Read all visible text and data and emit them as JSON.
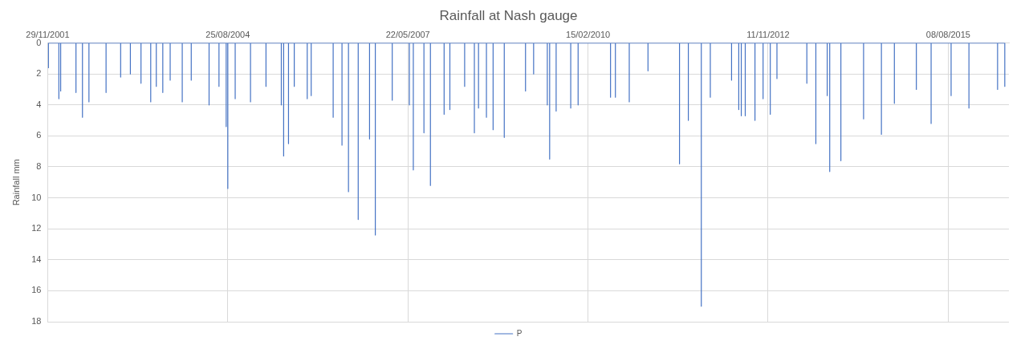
{
  "chart_data": {
    "type": "line",
    "title": "Rainfall at Nash gauge",
    "ylabel": "Rainfall mm",
    "xlim": [
      "2001-11-29",
      "2016-07-10"
    ],
    "xticks": [
      {
        "value": "2001-11-29",
        "label": "29/11/2001"
      },
      {
        "value": "2004-08-25",
        "label": "25/08/2004"
      },
      {
        "value": "2007-05-22",
        "label": "22/05/2007"
      },
      {
        "value": "2010-02-15",
        "label": "15/02/2010"
      },
      {
        "value": "2012-11-11",
        "label": "11/11/2012"
      },
      {
        "value": "2015-08-08",
        "label": "08/08/2015"
      }
    ],
    "ylim": [
      18,
      0
    ],
    "yticks": [
      0,
      2,
      4,
      6,
      8,
      10,
      12,
      14,
      16,
      18
    ],
    "grid": true,
    "legend": "bottom",
    "marker": "none",
    "line_style": "solid",
    "series": [
      {
        "name": "P",
        "color": "#4472c4",
        "x": [
          "2001-12-03",
          "2001-12-03",
          "2001-12-03",
          "2002-01-30",
          "2002-01-30",
          "2002-01-30",
          "2002-02-09",
          "2002-02-09",
          "2002-02-09",
          "2002-05-05",
          "2002-05-05",
          "2002-05-05",
          "2002-06-10",
          "2002-06-10",
          "2002-06-10",
          "2002-07-16",
          "2002-07-16",
          "2002-07-16",
          "2002-10-19",
          "2002-10-19",
          "2002-10-19",
          "2003-01-08",
          "2003-01-08",
          "2003-01-08",
          "2003-03-03",
          "2003-03-03",
          "2003-03-03",
          "2003-05-01",
          "2003-05-01",
          "2003-05-01",
          "2003-06-24",
          "2003-06-24",
          "2003-06-24",
          "2003-07-25",
          "2003-07-25",
          "2003-07-25",
          "2003-08-30",
          "2003-08-30",
          "2003-08-30",
          "2003-10-10",
          "2003-10-10",
          "2003-10-10",
          "2003-12-16",
          "2003-12-16",
          "2003-12-16",
          "2004-02-04",
          "2004-02-04",
          "2004-02-04",
          "2004-05-13",
          "2004-05-13",
          "2004-05-13",
          "2004-07-07",
          "2004-07-07",
          "2004-07-07",
          "2004-08-16",
          "2004-08-16",
          "2004-08-16",
          "2004-08-25",
          "2004-08-25",
          "2004-08-25",
          "2004-10-05",
          "2004-10-05",
          "2004-10-05",
          "2004-12-29",
          "2004-12-29",
          "2004-12-29",
          "2005-03-25",
          "2005-03-25",
          "2005-03-25",
          "2005-06-18",
          "2005-06-18",
          "2005-06-18",
          "2005-07-01",
          "2005-07-01",
          "2005-07-01",
          "2005-07-28",
          "2005-07-28",
          "2005-07-28",
          "2005-08-29",
          "2005-08-29",
          "2005-08-29",
          "2005-11-09",
          "2005-11-09",
          "2005-11-09",
          "2005-12-01",
          "2005-12-01",
          "2005-12-01",
          "2006-04-02",
          "2006-04-02",
          "2006-04-02",
          "2006-05-21",
          "2006-05-21",
          "2006-05-21",
          "2006-06-26",
          "2006-06-26",
          "2006-06-26",
          "2006-08-19",
          "2006-08-19",
          "2006-08-19",
          "2006-10-21",
          "2006-10-21",
          "2006-10-21",
          "2006-11-22",
          "2006-11-22",
          "2006-11-22",
          "2007-02-24",
          "2007-02-24",
          "2007-02-24",
          "2007-05-30",
          "2007-05-30",
          "2007-05-30",
          "2007-06-21",
          "2007-06-21",
          "2007-06-21",
          "2007-08-19",
          "2007-08-19",
          "2007-08-19",
          "2007-09-24",
          "2007-09-24",
          "2007-09-24",
          "2007-12-09",
          "2007-12-09",
          "2007-12-09",
          "2008-01-10",
          "2008-01-10",
          "2008-01-10",
          "2008-04-01",
          "2008-04-01",
          "2008-04-01",
          "2008-05-25",
          "2008-05-25",
          "2008-05-25",
          "2008-06-17",
          "2008-06-17",
          "2008-06-17",
          "2008-07-31",
          "2008-07-31",
          "2008-07-31",
          "2008-09-06",
          "2008-09-06",
          "2008-09-06",
          "2008-11-07",
          "2008-11-07",
          "2008-11-07",
          "2009-03-05",
          "2009-03-05",
          "2009-03-05",
          "2009-04-19",
          "2009-04-19",
          "2009-04-19",
          "2009-07-04",
          "2009-07-04",
          "2009-07-04",
          "2009-07-17",
          "2009-07-17",
          "2009-07-17",
          "2009-08-22",
          "2009-08-22",
          "2009-08-22",
          "2009-11-11",
          "2009-11-11",
          "2009-11-11",
          "2009-12-22",
          "2009-12-22",
          "2009-12-22",
          "2010-06-20",
          "2010-06-20",
          "2010-06-20",
          "2010-07-17",
          "2010-07-17",
          "2010-07-17",
          "2010-10-02",
          "2010-10-02",
          "2010-10-02",
          "2011-01-14",
          "2011-01-14",
          "2011-01-14",
          "2011-07-08",
          "2011-07-08",
          "2011-07-08",
          "2011-08-26",
          "2011-08-26",
          "2011-08-26",
          "2011-11-06",
          "2011-11-06",
          "2011-11-06",
          "2011-12-26",
          "2011-12-26",
          "2011-12-26",
          "2012-04-22",
          "2012-04-22",
          "2012-04-22",
          "2012-06-01",
          "2012-06-01",
          "2012-06-01",
          "2012-06-15",
          "2012-06-15",
          "2012-06-15",
          "2012-07-07",
          "2012-07-07",
          "2012-07-07",
          "2012-08-30",
          "2012-08-30",
          "2012-08-30",
          "2012-10-14",
          "2012-10-14",
          "2012-10-14",
          "2012-11-23",
          "2012-11-23",
          "2012-11-23",
          "2012-12-30",
          "2012-12-30",
          "2012-12-30",
          "2013-06-14",
          "2013-06-14",
          "2013-06-14",
          "2013-08-03",
          "2013-08-03",
          "2013-08-03",
          "2013-10-05",
          "2013-10-05",
          "2013-10-05",
          "2013-10-19",
          "2013-10-19",
          "2013-10-19",
          "2013-12-20",
          "2013-12-20",
          "2013-12-20",
          "2014-04-25",
          "2014-04-25",
          "2014-04-25",
          "2014-08-02",
          "2014-08-02",
          "2014-08-02",
          "2014-10-13",
          "2014-10-13",
          "2014-10-13",
          "2015-02-12",
          "2015-02-12",
          "2015-02-12",
          "2015-05-05",
          "2015-05-05",
          "2015-05-05",
          "2015-08-24",
          "2015-08-24",
          "2015-08-24",
          "2015-12-01",
          "2015-12-01",
          "2015-12-01",
          "2016-05-08",
          "2016-05-08",
          "2016-05-08",
          "2016-06-17",
          "2016-06-17",
          "2016-06-17"
        ],
        "values": [
          0,
          1.6,
          0,
          0,
          3.6,
          0,
          0,
          3.1,
          0,
          0,
          3.2,
          0,
          0,
          4.8,
          0,
          0,
          3.8,
          0,
          0,
          3.2,
          0,
          0,
          2.2,
          0,
          0,
          2.0,
          0,
          0,
          2.6,
          0,
          0,
          3.8,
          0,
          0,
          2.8,
          0,
          0,
          3.2,
          0,
          0,
          2.4,
          0,
          0,
          3.8,
          0,
          0,
          2.4,
          0,
          0,
          4.0,
          0,
          0,
          2.8,
          0,
          0,
          5.4,
          0,
          0,
          9.4,
          0,
          0,
          3.6,
          0,
          0,
          3.8,
          0,
          0,
          2.8,
          0,
          0,
          4.0,
          0,
          0,
          7.3,
          0,
          0,
          6.5,
          0,
          0,
          2.8,
          0,
          0,
          3.6,
          0,
          0,
          3.4,
          0,
          0,
          4.8,
          0,
          0,
          6.6,
          0,
          0,
          9.6,
          0,
          0,
          11.4,
          0,
          0,
          6.2,
          0,
          0,
          12.4,
          0,
          0,
          3.7,
          0,
          0,
          4.0,
          0,
          0,
          8.2,
          0,
          0,
          5.8,
          0,
          0,
          9.2,
          0,
          0,
          4.6,
          0,
          0,
          4.3,
          0,
          0,
          2.8,
          0,
          0,
          5.8,
          0,
          0,
          4.2,
          0,
          0,
          4.8,
          0,
          0,
          5.6,
          0,
          0,
          6.1,
          0,
          0,
          3.1,
          0,
          0,
          2.0,
          0,
          0,
          4.0,
          0,
          0,
          7.5,
          0,
          0,
          4.4,
          0,
          0,
          4.2,
          0,
          0,
          4.0,
          0,
          0,
          3.5,
          0,
          0,
          3.5,
          0,
          0,
          3.8,
          0,
          0,
          1.8,
          0,
          0,
          7.8,
          0,
          0,
          5.0,
          0,
          0,
          17.0,
          0,
          0,
          3.5,
          0,
          0,
          2.4,
          0,
          0,
          4.3,
          0,
          0,
          4.7,
          0,
          0,
          4.7,
          0,
          0,
          5.0,
          0,
          0,
          3.6,
          0,
          0,
          4.6,
          0,
          0,
          2.3,
          0,
          0,
          2.6,
          0,
          0,
          6.5,
          0,
          0,
          3.4,
          0,
          0,
          8.3,
          0,
          0,
          7.6,
          0,
          0,
          4.9,
          0,
          0,
          5.9,
          0,
          0,
          3.9,
          0,
          0,
          3.0,
          0,
          0,
          5.2,
          0,
          0,
          3.4,
          0,
          0,
          4.2,
          0,
          0,
          3.0,
          0,
          0,
          2.8,
          0
        ]
      }
    ]
  }
}
